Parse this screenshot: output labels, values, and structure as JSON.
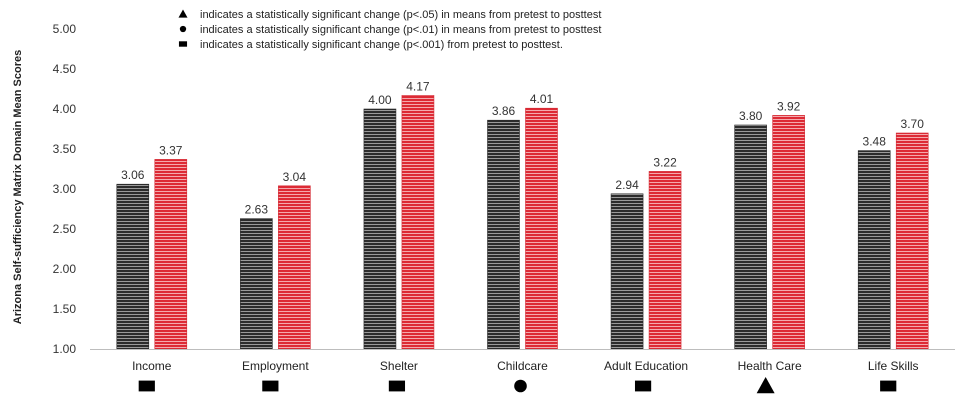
{
  "chart_data": {
    "type": "bar",
    "title": "",
    "xlabel": "",
    "ylabel": "Arizona Self-sufficiency Matrix Domain Mean Scores",
    "ylim": [
      1.0,
      5.0
    ],
    "yticks": [
      "1.00",
      "1.50",
      "2.00",
      "2.50",
      "3.00",
      "3.50",
      "4.00",
      "4.50",
      "5.00"
    ],
    "grid": false,
    "categories": [
      "Income",
      "Employment",
      "Shelter",
      "Childcare",
      "Adult Education",
      "Health Care",
      "Life Skills"
    ],
    "series": [
      {
        "values": [
          3.06,
          2.63,
          4.0,
          3.86,
          2.94,
          3.8,
          3.48
        ],
        "labels": [
          "3.06",
          "2.63",
          "4.00",
          "3.86",
          "2.94",
          "3.80",
          "3.48"
        ],
        "color": "#3a3a3a"
      },
      {
        "values": [
          3.37,
          3.04,
          4.17,
          4.01,
          3.22,
          3.92,
          3.7
        ],
        "labels": [
          "3.37",
          "3.04",
          "4.17",
          "4.01",
          "3.22",
          "3.92",
          "3.70"
        ],
        "color": "#e0303a"
      }
    ],
    "significance": [
      "square",
      "square",
      "square",
      "circle",
      "square",
      "triangle",
      "square"
    ],
    "legend_placement": "top-center",
    "legend": [
      {
        "marker": "triangle",
        "text": "indicates a statistically significant change (p<.05) in means from pretest to posttest"
      },
      {
        "marker": "circle",
        "text": "indicates a statistically significant change (p<.01) in means from pretest to posttest"
      },
      {
        "marker": "square",
        "text": "indicates a statistically significant change (p<.001) from pretest to posttest."
      }
    ]
  }
}
